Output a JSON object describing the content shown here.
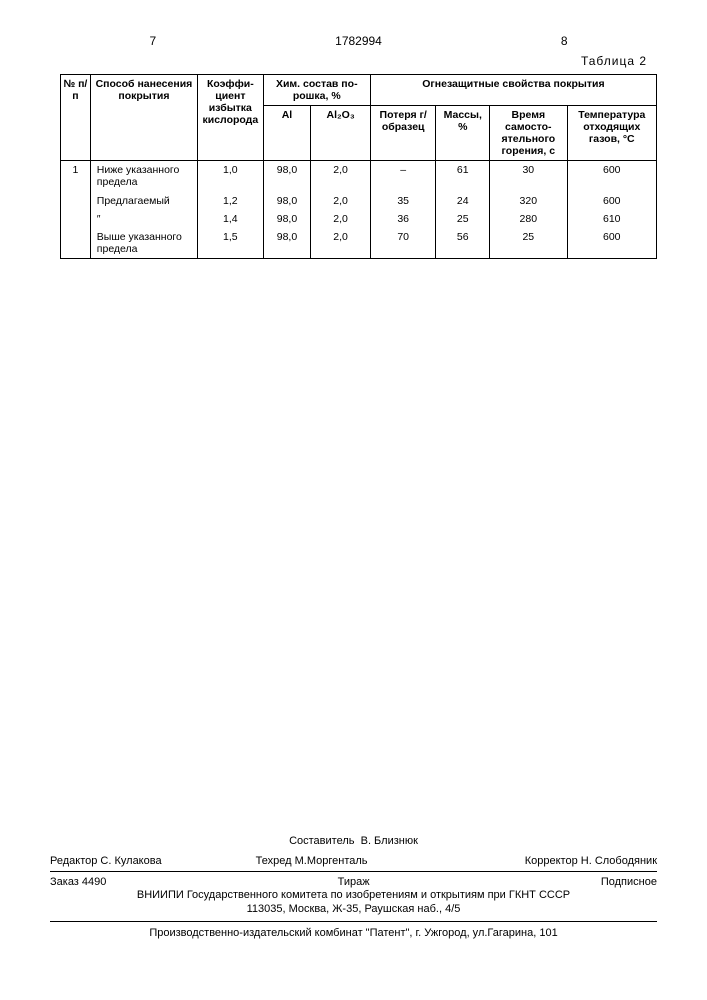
{
  "header": {
    "left_page": "7",
    "doc_number": "1782994",
    "right_page": "8",
    "table_label": "Таблица 2"
  },
  "table": {
    "columns": {
      "num": "№ п/п",
      "method": "Способ нанесе­ния покрытия",
      "coef": "Коэффи­циент избытка кисло­ро­да",
      "chem_group": "Хим. состав по­рошка, %",
      "al": "Al",
      "al2o3": "Al₂O₃",
      "fire_group": "Огнезащитные свойства покрытия",
      "loss": "Потеря г/обра­зец",
      "mass": "Массы, %",
      "burn": "Время самосто­ятельно­го горения, с",
      "temp": "Темпера­тура от­ходящих газов, °С"
    },
    "rows": [
      {
        "num": "1",
        "method": "Ниже указанно­го предела",
        "coef": "1,0",
        "al": "98,0",
        "al2o3": "2,0",
        "loss": "–",
        "mass": "61",
        "burn": "30",
        "temp": "600"
      },
      {
        "num": "",
        "method": "Предлагаемый",
        "coef": "1,2",
        "al": "98,0",
        "al2o3": "2,0",
        "loss": "35",
        "mass": "24",
        "burn": "320",
        "temp": "600"
      },
      {
        "num": "",
        "method": "″",
        "coef": "1,4",
        "al": "98,0",
        "al2o3": "2,0",
        "loss": "36",
        "mass": "25",
        "burn": "280",
        "temp": "610"
      },
      {
        "num": "",
        "method": "Выше указанно­го предела",
        "coef": "1,5",
        "al": "98,0",
        "al2o3": "2,0",
        "loss": "70",
        "mass": "56",
        "burn": "25",
        "temp": "600"
      }
    ]
  },
  "footer": {
    "compiler_label": "Составитель",
    "compiler": "В. Близнюк",
    "editor_label": "Редактор",
    "editor": "С. Кулакова",
    "tech_label": "Техред",
    "tech": "М.Моргенталь",
    "corrector_label": "Корректор",
    "corrector": "Н. Слободяник",
    "order_label": "Заказ",
    "order": "4490",
    "tirazh": "Тираж",
    "subscription": "Подписное",
    "publisher1": "ВНИИПИ Государственного комитета по изобретениям и открытиям при ГКНТ СССР",
    "publisher2": "113035, Москва, Ж-35, Раушская наб., 4/5",
    "printer": "Производственно-издательский комбинат \"Патент\", г. Ужгород, ул.Гагарина, 101"
  }
}
